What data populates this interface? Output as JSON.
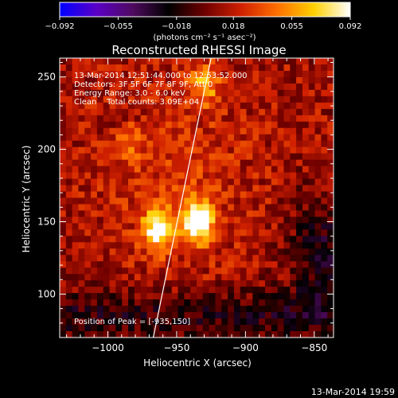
{
  "chart_data": {
    "type": "heatmap",
    "title": "Reconstructed RHESSI Image",
    "xlabel": "Heliocentric X (arcsec)",
    "ylabel": "Heliocentric Y (arcsec)",
    "xlim": [
      -1035,
      -836
    ],
    "ylim": [
      70,
      263
    ],
    "x_ticks": [
      -1000,
      -950,
      -900,
      -850
    ],
    "x_tick_labels": [
      "−1000",
      "−950",
      "−900",
      "−850"
    ],
    "y_ticks": [
      100,
      150,
      200,
      250
    ],
    "y_tick_labels": [
      "100",
      "150",
      "200",
      "250"
    ],
    "colorbar": {
      "range": [
        -0.092,
        0.092
      ],
      "ticks": [
        -0.092,
        -0.055,
        -0.018,
        0.018,
        0.055,
        0.092
      ],
      "tick_labels": [
        "−0.092",
        "−0.055",
        "−0.018",
        "0.018",
        "0.055",
        "0.092"
      ],
      "unit_label": "(photons cm⁻² s⁻¹ asec⁻²)",
      "colormap": [
        "#0000ff",
        "#5a00c8",
        "#500a60",
        "#000000",
        "#700000",
        "#d02000",
        "#ff7000",
        "#ffd000",
        "#ffffff"
      ]
    },
    "annotations": [
      "13-Mar-2014 12:51:44.000 to 12:53:52.000",
      "Detectors: 3F 5F 6F 7F 8F 9F, Att 0",
      "Energy Range: 3.0 - 6.0 keV",
      "Clean    Total counts: 3.09E+04"
    ],
    "peak_label": "Position of Peak = [-935,150]",
    "peak_position": [
      -935,
      150
    ],
    "sources": [
      {
        "x": -935,
        "y": 150,
        "peak": 0.092
      },
      {
        "x": -963,
        "y": 145,
        "peak": 0.08
      },
      {
        "x": -985,
        "y": 210,
        "peak": 0.04
      },
      {
        "x": -930,
        "y": 245,
        "peak": 0.045
      }
    ],
    "limb_line": [
      [
        -967,
        70
      ],
      [
        -925,
        263
      ]
    ],
    "footer": "13-Mar-2014 19:59"
  }
}
